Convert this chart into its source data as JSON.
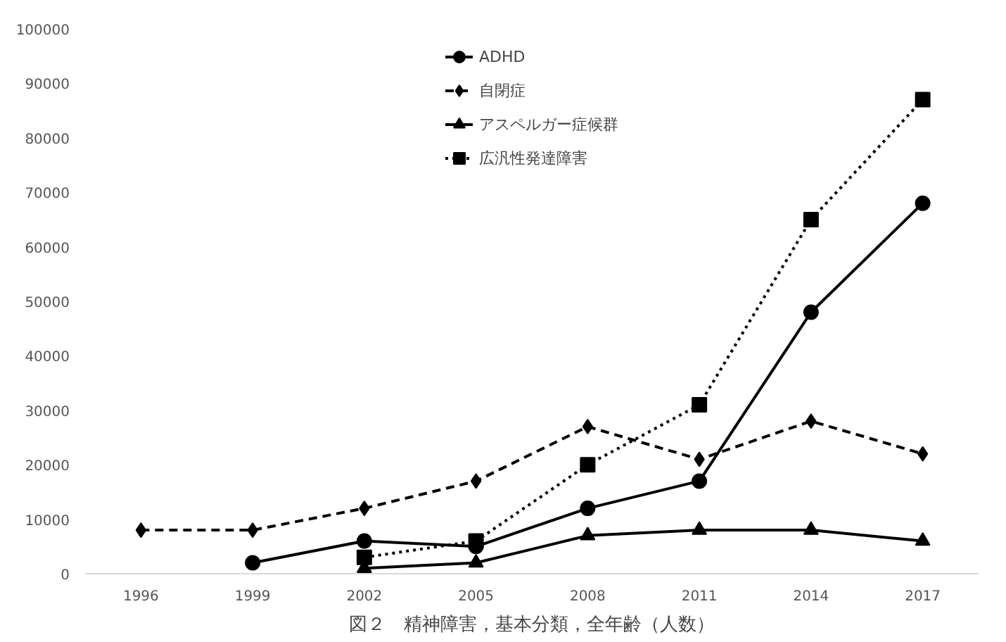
{
  "chart_data": {
    "type": "line",
    "title": "図２　精神障害，基本分類，全年齢（人数）",
    "categories": [
      "1996",
      "1999",
      "2002",
      "2005",
      "2008",
      "2011",
      "2014",
      "2017"
    ],
    "series": [
      {
        "name": "ADHD",
        "color": "#000000",
        "marker": "circle",
        "line_style": "solid",
        "values": [
          null,
          2000,
          6000,
          5000,
          12000,
          17000,
          48000,
          68000
        ]
      },
      {
        "name": "自閉症",
        "color": "#000000",
        "marker": "diamond",
        "line_style": "dashed",
        "values": [
          8000,
          8000,
          12000,
          17000,
          27000,
          21000,
          28000,
          22000
        ]
      },
      {
        "name": "アスペルガー症候群",
        "color": "#000000",
        "marker": "triangle",
        "line_style": "solid",
        "values": [
          null,
          null,
          1000,
          2000,
          7000,
          8000,
          8000,
          6000
        ]
      },
      {
        "name": "広汎性発達障害",
        "color": "#000000",
        "marker": "square",
        "line_style": "dotted",
        "values": [
          null,
          null,
          3000,
          6000,
          20000,
          31000,
          65000,
          87000
        ]
      }
    ],
    "ylim": [
      0,
      100000
    ],
    "yticks": [
      0,
      10000,
      20000,
      30000,
      40000,
      50000,
      60000,
      70000,
      80000,
      90000,
      100000
    ],
    "grid": false,
    "legend": "top"
  }
}
